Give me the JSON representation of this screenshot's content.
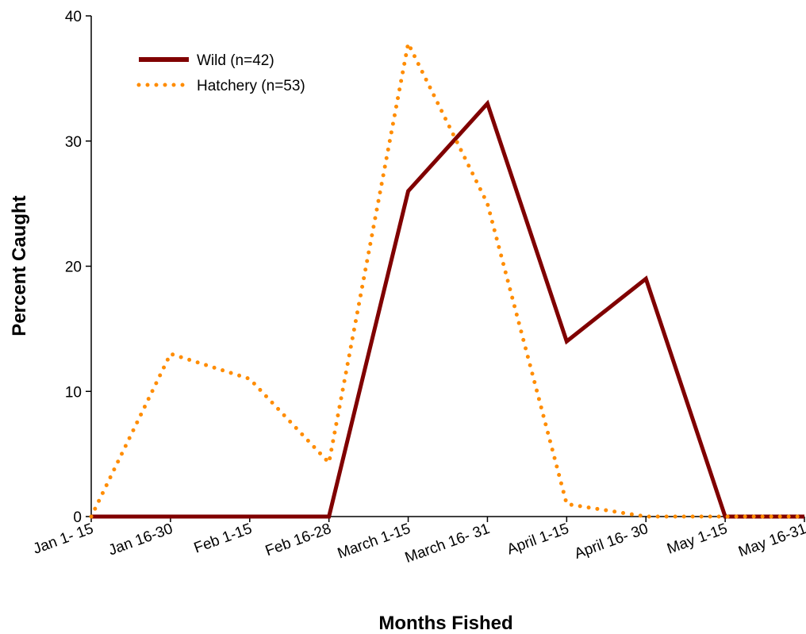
{
  "chart_data": {
    "type": "line",
    "title": "",
    "xlabel": "Months Fished",
    "ylabel": "Percent Caught",
    "categories": [
      "Jan 1- 15",
      "Jan 16-30",
      "Feb 1-15",
      "Feb 16-28",
      "March 1-15",
      "March 16- 31",
      "April 1-15",
      "April 16- 30",
      "May 1-15",
      "May 16-31"
    ],
    "ylim": [
      0,
      40
    ],
    "yticks": [
      0,
      10,
      20,
      30,
      40
    ],
    "grid": false,
    "legend_position": "top-left",
    "series": [
      {
        "name": "Wild (n=42)",
        "color": "#800000",
        "style": "solid",
        "values": [
          0,
          0,
          0,
          0,
          26,
          33,
          14,
          19,
          0,
          0
        ]
      },
      {
        "name": "Hatchery (n=53)",
        "color": "#FF8C00",
        "style": "dotted",
        "values": [
          0,
          13,
          11,
          4.3,
          37.8,
          25,
          1,
          0,
          0,
          0
        ]
      }
    ]
  }
}
